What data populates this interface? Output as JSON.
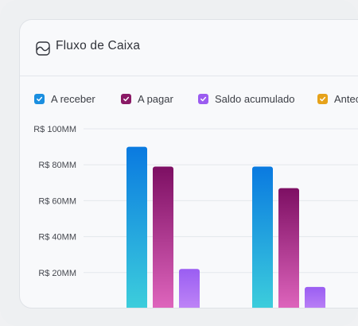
{
  "header": {
    "title": "Fluxo de Caixa",
    "icon": "chart-card-icon"
  },
  "legend": [
    {
      "label": "A receber",
      "color": "#1b8fe0",
      "checked": true
    },
    {
      "label": "A pagar",
      "color": "#8a1a66",
      "checked": true
    },
    {
      "label": "Saldo acumulado",
      "color": "#9b5cf0",
      "checked": true
    },
    {
      "label": "Antec",
      "color": "#e6a21a",
      "checked": true
    }
  ],
  "chart_data": {
    "type": "bar",
    "categories": [
      "",
      ""
    ],
    "series": [
      {
        "name": "A receber",
        "values": [
          90,
          79
        ],
        "color_top": "#0a7ae0",
        "color_bottom": "#3fd2dc"
      },
      {
        "name": "A pagar",
        "values": [
          79,
          67
        ],
        "color_top": "#7d0f63",
        "color_bottom": "#e46ac2"
      },
      {
        "name": "Saldo acumulado",
        "values": [
          22,
          12
        ],
        "color_top": "#9a5ef2",
        "color_bottom": "#c58cf7"
      }
    ],
    "ylabel": "",
    "ylim": [
      0,
      100
    ],
    "yticks": [
      20,
      40,
      60,
      80,
      100
    ],
    "ytick_labels": [
      "R$ 20MM",
      "R$ 40MM",
      "R$ 60MM",
      "R$ 80MM",
      "R$ 100MM"
    ],
    "grid": true
  }
}
